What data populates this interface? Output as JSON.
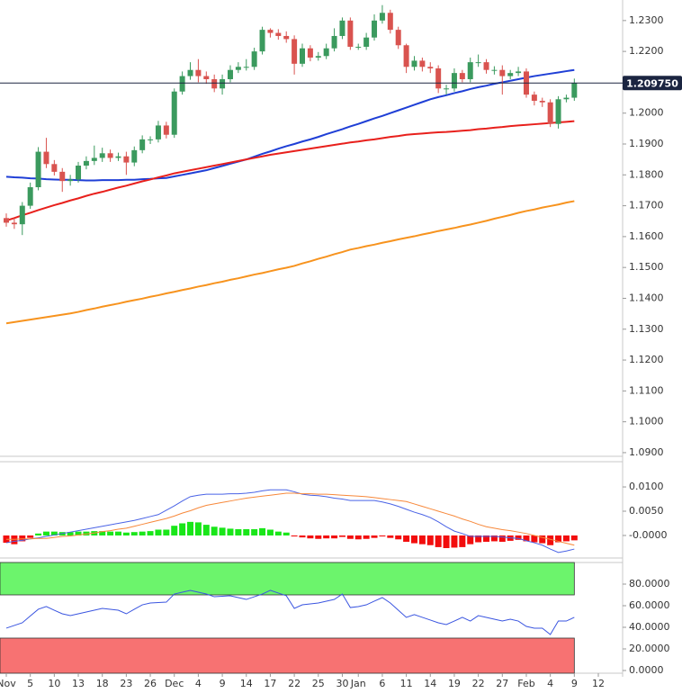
{
  "chart_data": [
    {
      "type": "candlestick",
      "categories": [
        "Nov",
        null,
        null,
        "5",
        null,
        null,
        "10",
        null,
        null,
        "13",
        null,
        null,
        "18",
        null,
        null,
        "23",
        null,
        null,
        "26",
        null,
        null,
        "Dec",
        null,
        null,
        "4",
        null,
        null,
        "9",
        null,
        null,
        "14",
        null,
        null,
        "17",
        null,
        null,
        "22",
        null,
        null,
        "25",
        null,
        null,
        "30",
        null,
        "Jan",
        null,
        null,
        "6",
        null,
        null,
        "11",
        null,
        null,
        "14",
        null,
        null,
        "19",
        null,
        null,
        "22",
        null,
        null,
        "27",
        null,
        null,
        "Feb",
        null,
        null,
        "4",
        null,
        null,
        "9",
        null,
        null,
        "12"
      ],
      "open": [
        1.166,
        1.1645,
        1.164,
        1.17,
        1.176,
        1.1875,
        1.1835,
        1.181,
        1.178,
        1.1785,
        1.183,
        1.1845,
        1.1855,
        1.187,
        1.1855,
        1.186,
        1.184,
        1.188,
        1.1915,
        1.1915,
        1.196,
        1.193,
        1.207,
        1.212,
        1.214,
        1.212,
        1.211,
        1.208,
        1.211,
        1.214,
        1.215,
        1.215,
        1.22,
        1.227,
        1.226,
        1.225,
        1.224,
        1.216,
        1.221,
        1.218,
        1.2185,
        1.221,
        1.225,
        1.23,
        1.2215,
        1.2215,
        1.2245,
        1.23,
        1.2325,
        1.227,
        1.222,
        1.215,
        1.217,
        1.215,
        1.2145,
        1.208,
        1.208,
        1.213,
        1.211,
        1.2165,
        1.2165,
        1.214,
        1.214,
        1.212,
        1.213,
        1.2135,
        1.206,
        1.204,
        1.2035,
        1.1965,
        1.2045,
        1.205,
        null,
        null,
        null
      ],
      "high": [
        1.1675,
        1.166,
        1.1712,
        1.1775,
        1.189,
        1.192,
        1.1848,
        1.1822,
        1.18,
        1.1842,
        1.186,
        1.1895,
        1.1888,
        1.1882,
        1.1872,
        1.1875,
        1.1892,
        1.1928,
        1.1925,
        1.1975,
        1.1972,
        1.208,
        1.2135,
        1.2165,
        1.2175,
        1.2135,
        1.2125,
        1.2125,
        1.2155,
        1.2165,
        1.2175,
        1.2212,
        1.228,
        1.2275,
        1.2272,
        1.2265,
        1.2252,
        1.2225,
        1.222,
        1.2198,
        1.2225,
        1.2275,
        1.231,
        1.231,
        1.2225,
        1.226,
        1.232,
        1.235,
        1.2335,
        1.228,
        1.2225,
        1.2185,
        1.218,
        1.2165,
        1.2155,
        1.2092,
        1.2145,
        1.214,
        1.218,
        1.219,
        1.2175,
        1.2152,
        1.2155,
        1.214,
        1.215,
        1.2145,
        1.207,
        1.205,
        1.2045,
        1.2055,
        1.206,
        1.2112,
        null,
        null,
        null
      ],
      "low": [
        1.1632,
        1.1625,
        1.1605,
        1.169,
        1.175,
        1.1822,
        1.1798,
        1.1745,
        1.1765,
        1.1775,
        1.1818,
        1.1832,
        1.1842,
        1.1842,
        1.1845,
        1.18,
        1.1828,
        1.187,
        1.19,
        1.1905,
        1.1918,
        1.192,
        1.206,
        1.2108,
        1.21,
        1.2095,
        1.2068,
        1.206,
        1.21,
        1.213,
        1.2138,
        1.214,
        1.219,
        1.2245,
        1.2238,
        1.2228,
        1.2125,
        1.215,
        1.2168,
        1.217,
        1.2175,
        1.22,
        1.224,
        1.2205,
        1.2205,
        1.2205,
        1.2235,
        1.229,
        1.2258,
        1.2208,
        1.213,
        1.2138,
        1.2135,
        1.213,
        1.2065,
        1.206,
        1.207,
        1.21,
        1.21,
        1.215,
        1.2128,
        1.2125,
        1.206,
        1.211,
        1.212,
        1.205,
        1.2025,
        1.202,
        1.1955,
        1.195,
        1.2035,
        1.204,
        null,
        null,
        null
      ],
      "close": [
        1.1645,
        1.164,
        1.17,
        1.176,
        1.1875,
        1.1835,
        1.181,
        1.178,
        1.1785,
        1.183,
        1.1845,
        1.1855,
        1.187,
        1.1855,
        1.186,
        1.184,
        1.188,
        1.1915,
        1.1915,
        1.196,
        1.193,
        1.207,
        1.212,
        1.214,
        1.212,
        1.211,
        1.208,
        1.211,
        1.214,
        1.215,
        1.215,
        1.22,
        1.227,
        1.226,
        1.225,
        1.224,
        1.216,
        1.221,
        1.218,
        1.2185,
        1.221,
        1.225,
        1.23,
        1.2215,
        1.2215,
        1.2245,
        1.23,
        1.2325,
        1.227,
        1.222,
        1.215,
        1.217,
        1.215,
        1.2145,
        1.208,
        1.208,
        1.213,
        1.211,
        1.2165,
        1.2165,
        1.214,
        1.214,
        1.212,
        1.213,
        1.2135,
        1.206,
        1.204,
        1.2035,
        1.1965,
        1.2045,
        1.205,
        1.2098,
        null,
        null,
        null
      ],
      "up_color": "#3b9a5e",
      "down_color": "#d9534f",
      "overlays": [
        {
          "color": "#1f3fd6",
          "values": [
            1.1794,
            1.1792,
            1.1791,
            1.1789,
            1.1788,
            1.1786,
            1.1785,
            1.1784,
            1.1784,
            1.1783,
            1.1782,
            1.1782,
            1.1783,
            1.1783,
            1.1783,
            1.1784,
            1.1784,
            1.1786,
            1.1787,
            1.1789,
            1.179,
            1.1795,
            1.18,
            1.1805,
            1.181,
            1.1815,
            1.1822,
            1.1829,
            1.1836,
            1.1843,
            1.185,
            1.1859,
            1.1868,
            1.1876,
            1.1885,
            1.1893,
            1.19,
            1.1908,
            1.1915,
            1.1923,
            1.1932,
            1.194,
            1.1948,
            1.1957,
            1.1965,
            1.1974,
            1.1983,
            1.1991,
            1.2,
            1.2009,
            1.2018,
            1.2027,
            1.2036,
            1.2045,
            1.2052,
            1.2058,
            1.2065,
            1.2071,
            1.2078,
            1.2084,
            1.2089,
            1.2095,
            1.21,
            1.2105,
            1.211,
            1.2115,
            1.212,
            1.2124,
            1.2128,
            1.2132,
            1.2136,
            1.214,
            null,
            null,
            null
          ]
        },
        {
          "color": "#e8201c",
          "values": [
            1.1652,
            1.166,
            1.1669,
            1.1677,
            1.1686,
            1.1694,
            1.1702,
            1.1709,
            1.1717,
            1.1724,
            1.1732,
            1.1739,
            1.1745,
            1.1752,
            1.1759,
            1.1765,
            1.1772,
            1.1779,
            1.1785,
            1.1792,
            1.1798,
            1.1805,
            1.181,
            1.1815,
            1.182,
            1.1825,
            1.183,
            1.1835,
            1.184,
            1.1845,
            1.185,
            1.1855,
            1.186,
            1.1865,
            1.1869,
            1.1873,
            1.1877,
            1.1881,
            1.1885,
            1.1889,
            1.1893,
            1.1897,
            1.1901,
            1.1905,
            1.1908,
            1.1912,
            1.1915,
            1.1919,
            1.1923,
            1.1926,
            1.193,
            1.1932,
            1.1934,
            1.1936,
            1.1938,
            1.1939,
            1.1941,
            1.1943,
            1.1945,
            1.1948,
            1.195,
            1.1953,
            1.1955,
            1.1958,
            1.196,
            1.1962,
            1.1964,
            1.1966,
            1.1968,
            1.197,
            1.1972,
            1.1974,
            null,
            null,
            null
          ]
        },
        {
          "color": "#f7931e",
          "values": [
            1.1319,
            1.1323,
            1.1327,
            1.1331,
            1.1335,
            1.1339,
            1.1343,
            1.1347,
            1.1351,
            1.1356,
            1.1362,
            1.1367,
            1.1373,
            1.1378,
            1.1383,
            1.1389,
            1.1394,
            1.1399,
            1.1405,
            1.141,
            1.1416,
            1.1421,
            1.1427,
            1.1432,
            1.1438,
            1.1443,
            1.1449,
            1.1454,
            1.146,
            1.1465,
            1.1471,
            1.1477,
            1.1482,
            1.1488,
            1.1494,
            1.1499,
            1.1505,
            1.1513,
            1.152,
            1.1528,
            1.1535,
            1.1543,
            1.155,
            1.1558,
            1.1563,
            1.1569,
            1.1574,
            1.158,
            1.1585,
            1.1591,
            1.1596,
            1.1601,
            1.1607,
            1.1612,
            1.1618,
            1.1623,
            1.1628,
            1.1634,
            1.1639,
            1.1645,
            1.1651,
            1.1658,
            1.1664,
            1.167,
            1.1677,
            1.1683,
            1.1688,
            1.1694,
            1.1699,
            1.1704,
            1.171,
            1.1715,
            null,
            null,
            null
          ]
        }
      ],
      "last_price": 1.20975,
      "last_price_label": "1.209750",
      "last_price_color": "#1b2541",
      "ylim": [
        1.0894,
        1.2352
      ],
      "yticks": [
        {
          "value": 1.09,
          "label": "1.0900"
        },
        {
          "value": 1.1,
          "label": "1.1000"
        },
        {
          "value": 1.11,
          "label": "1.1100"
        },
        {
          "value": 1.12,
          "label": "1.1200"
        },
        {
          "value": 1.13,
          "label": "1.1300"
        },
        {
          "value": 1.14,
          "label": "1.1400"
        },
        {
          "value": 1.15,
          "label": "1.1500"
        },
        {
          "value": 1.16,
          "label": "1.1600"
        },
        {
          "value": 1.17,
          "label": "1.1700"
        },
        {
          "value": 1.18,
          "label": "1.1800"
        },
        {
          "value": 1.19,
          "label": "1.1900"
        },
        {
          "value": 1.2,
          "label": "1.2000"
        },
        {
          "value": 1.21,
          "label": "1.2100"
        },
        {
          "value": 1.22,
          "label": "1.2200"
        },
        {
          "value": 1.23,
          "label": "1.2300"
        }
      ]
    },
    {
      "type": "macd",
      "histogram": [
        -0.0015,
        -0.0018,
        -0.0012,
        -0.0005,
        0.0004,
        0.0008,
        0.0008,
        0.0007,
        0.0007,
        0.0008,
        0.0008,
        0.0009,
        0.0009,
        0.0008,
        0.0008,
        0.0006,
        0.0007,
        0.0008,
        0.0009,
        0.0012,
        0.0012,
        0.002,
        0.0025,
        0.0028,
        0.0027,
        0.0022,
        0.0018,
        0.0016,
        0.0014,
        0.0013,
        0.0013,
        0.0013,
        0.0015,
        0.0012,
        0.0008,
        0.0006,
        -0.0002,
        -0.0004,
        -0.0006,
        -0.0007,
        -0.0006,
        -0.0006,
        -0.0003,
        -0.0007,
        -0.0008,
        -0.0007,
        -0.0005,
        -0.0002,
        -0.0005,
        -0.0008,
        -0.0013,
        -0.0016,
        -0.0018,
        -0.002,
        -0.0024,
        -0.0026,
        -0.0025,
        -0.0024,
        -0.0018,
        -0.0014,
        -0.0013,
        -0.0012,
        -0.0013,
        -0.0011,
        -0.0009,
        -0.0012,
        -0.0014,
        -0.0016,
        -0.002,
        -0.0014,
        -0.0012,
        -0.001,
        null,
        null,
        null
      ],
      "up_color": "#19e619",
      "down_color": "#f20d0d",
      "lines": [
        {
          "color": "#4a63e6",
          "values": [
            -0.0015,
            -0.0012,
            -0.001,
            -0.0007,
            -0.0005,
            -0.0002,
            0.0001,
            0.0004,
            0.0007,
            0.001,
            0.0013,
            0.0016,
            0.0019,
            0.0022,
            0.0025,
            0.0028,
            0.0031,
            0.0035,
            0.0039,
            0.0043,
            0.0052,
            0.0061,
            0.0071,
            0.008,
            0.0083,
            0.0085,
            0.0085,
            0.0085,
            0.0086,
            0.0086,
            0.0087,
            0.0089,
            0.0092,
            0.0094,
            0.0094,
            0.0094,
            0.009,
            0.0085,
            0.0083,
            0.0082,
            0.008,
            0.0077,
            0.0075,
            0.0072,
            0.0072,
            0.0072,
            0.0072,
            0.0069,
            0.0065,
            0.006,
            0.0054,
            0.0048,
            0.0043,
            0.0037,
            0.0028,
            0.0018,
            0.0009,
            0.0004,
            -0.0002,
            -0.0002,
            -0.0002,
            -0.0002,
            -0.0003,
            -0.0005,
            -0.0006,
            -0.0011,
            -0.0015,
            -0.002,
            -0.0028,
            -0.0035,
            -0.0032,
            -0.0028,
            null,
            null,
            null
          ]
        },
        {
          "color": "#f7883a",
          "values": [
            -0.0008,
            -0.0008,
            -0.0007,
            -0.0007,
            -0.0006,
            -0.0006,
            -0.0004,
            -0.0002,
            -0.0001,
            0.0001,
            0.0003,
            0.0005,
            0.0008,
            0.001,
            0.0013,
            0.0015,
            0.0019,
            0.0023,
            0.0027,
            0.0031,
            0.0035,
            0.004,
            0.0046,
            0.0051,
            0.0057,
            0.0062,
            0.0065,
            0.0068,
            0.0071,
            0.0074,
            0.0077,
            0.0079,
            0.0081,
            0.0083,
            0.0085,
            0.0087,
            0.0087,
            0.0086,
            0.0086,
            0.0085,
            0.0085,
            0.0084,
            0.0083,
            0.0082,
            0.0081,
            0.008,
            0.0078,
            0.0076,
            0.0074,
            0.0072,
            0.007,
            0.0065,
            0.006,
            0.0055,
            0.005,
            0.0045,
            0.004,
            0.0034,
            0.0029,
            0.0023,
            0.0018,
            0.0015,
            0.0012,
            0.001,
            0.0007,
            0.0004,
            0.0,
            -0.0004,
            -0.0008,
            -0.0012,
            -0.0016,
            -0.002,
            null,
            null,
            null
          ]
        }
      ],
      "ylim": [
        -0.0039,
        0.0152
      ],
      "yticks": [
        {
          "value": 0.01,
          "label": "0.0100"
        },
        {
          "value": 0.005,
          "label": "0.0050"
        },
        {
          "value": 0,
          "label": "-0.0000"
        }
      ]
    },
    {
      "type": "line",
      "values": [
        39.2,
        41.7,
        44.2,
        50.5,
        56.7,
        59.2,
        55.8,
        52.5,
        50.8,
        52.5,
        54.2,
        55.8,
        57.5,
        56.7,
        55.8,
        52.5,
        56.7,
        60.8,
        62.5,
        62.9,
        63.3,
        70.8,
        72.5,
        74.2,
        72.5,
        70.8,
        68.3,
        68.8,
        69.2,
        67.5,
        65.8,
        68.3,
        70.8,
        74.2,
        71.7,
        69.2,
        57.5,
        60.8,
        61.7,
        62.5,
        64.2,
        65.8,
        70.8,
        58.3,
        59.2,
        60.8,
        64.2,
        67.5,
        62.5,
        55.8,
        49.2,
        51.7,
        49.2,
        46.7,
        44.2,
        42.5,
        45.8,
        49.2,
        45.8,
        50.8,
        49.2,
        47.5,
        45.8,
        47.5,
        45.8,
        40.8,
        39.2,
        39.2,
        33.3,
        45.8,
        45.8,
        49.2,
        null,
        null,
        null
      ],
      "color": "#3a55e0",
      "zones": [
        {
          "from": 70,
          "to": 100,
          "color": "#6cf46c"
        },
        {
          "from": -2.5,
          "to": 30,
          "color": "#f77272"
        }
      ],
      "ylim": [
        -2.5,
        100
      ],
      "yticks": [
        {
          "value": 80,
          "label": "80.0000"
        },
        {
          "value": 60,
          "label": "60.0000"
        },
        {
          "value": 40,
          "label": "40.0000"
        },
        {
          "value": 20,
          "label": "20.0000"
        },
        {
          "value": 0,
          "label": "0.0000"
        }
      ]
    }
  ]
}
